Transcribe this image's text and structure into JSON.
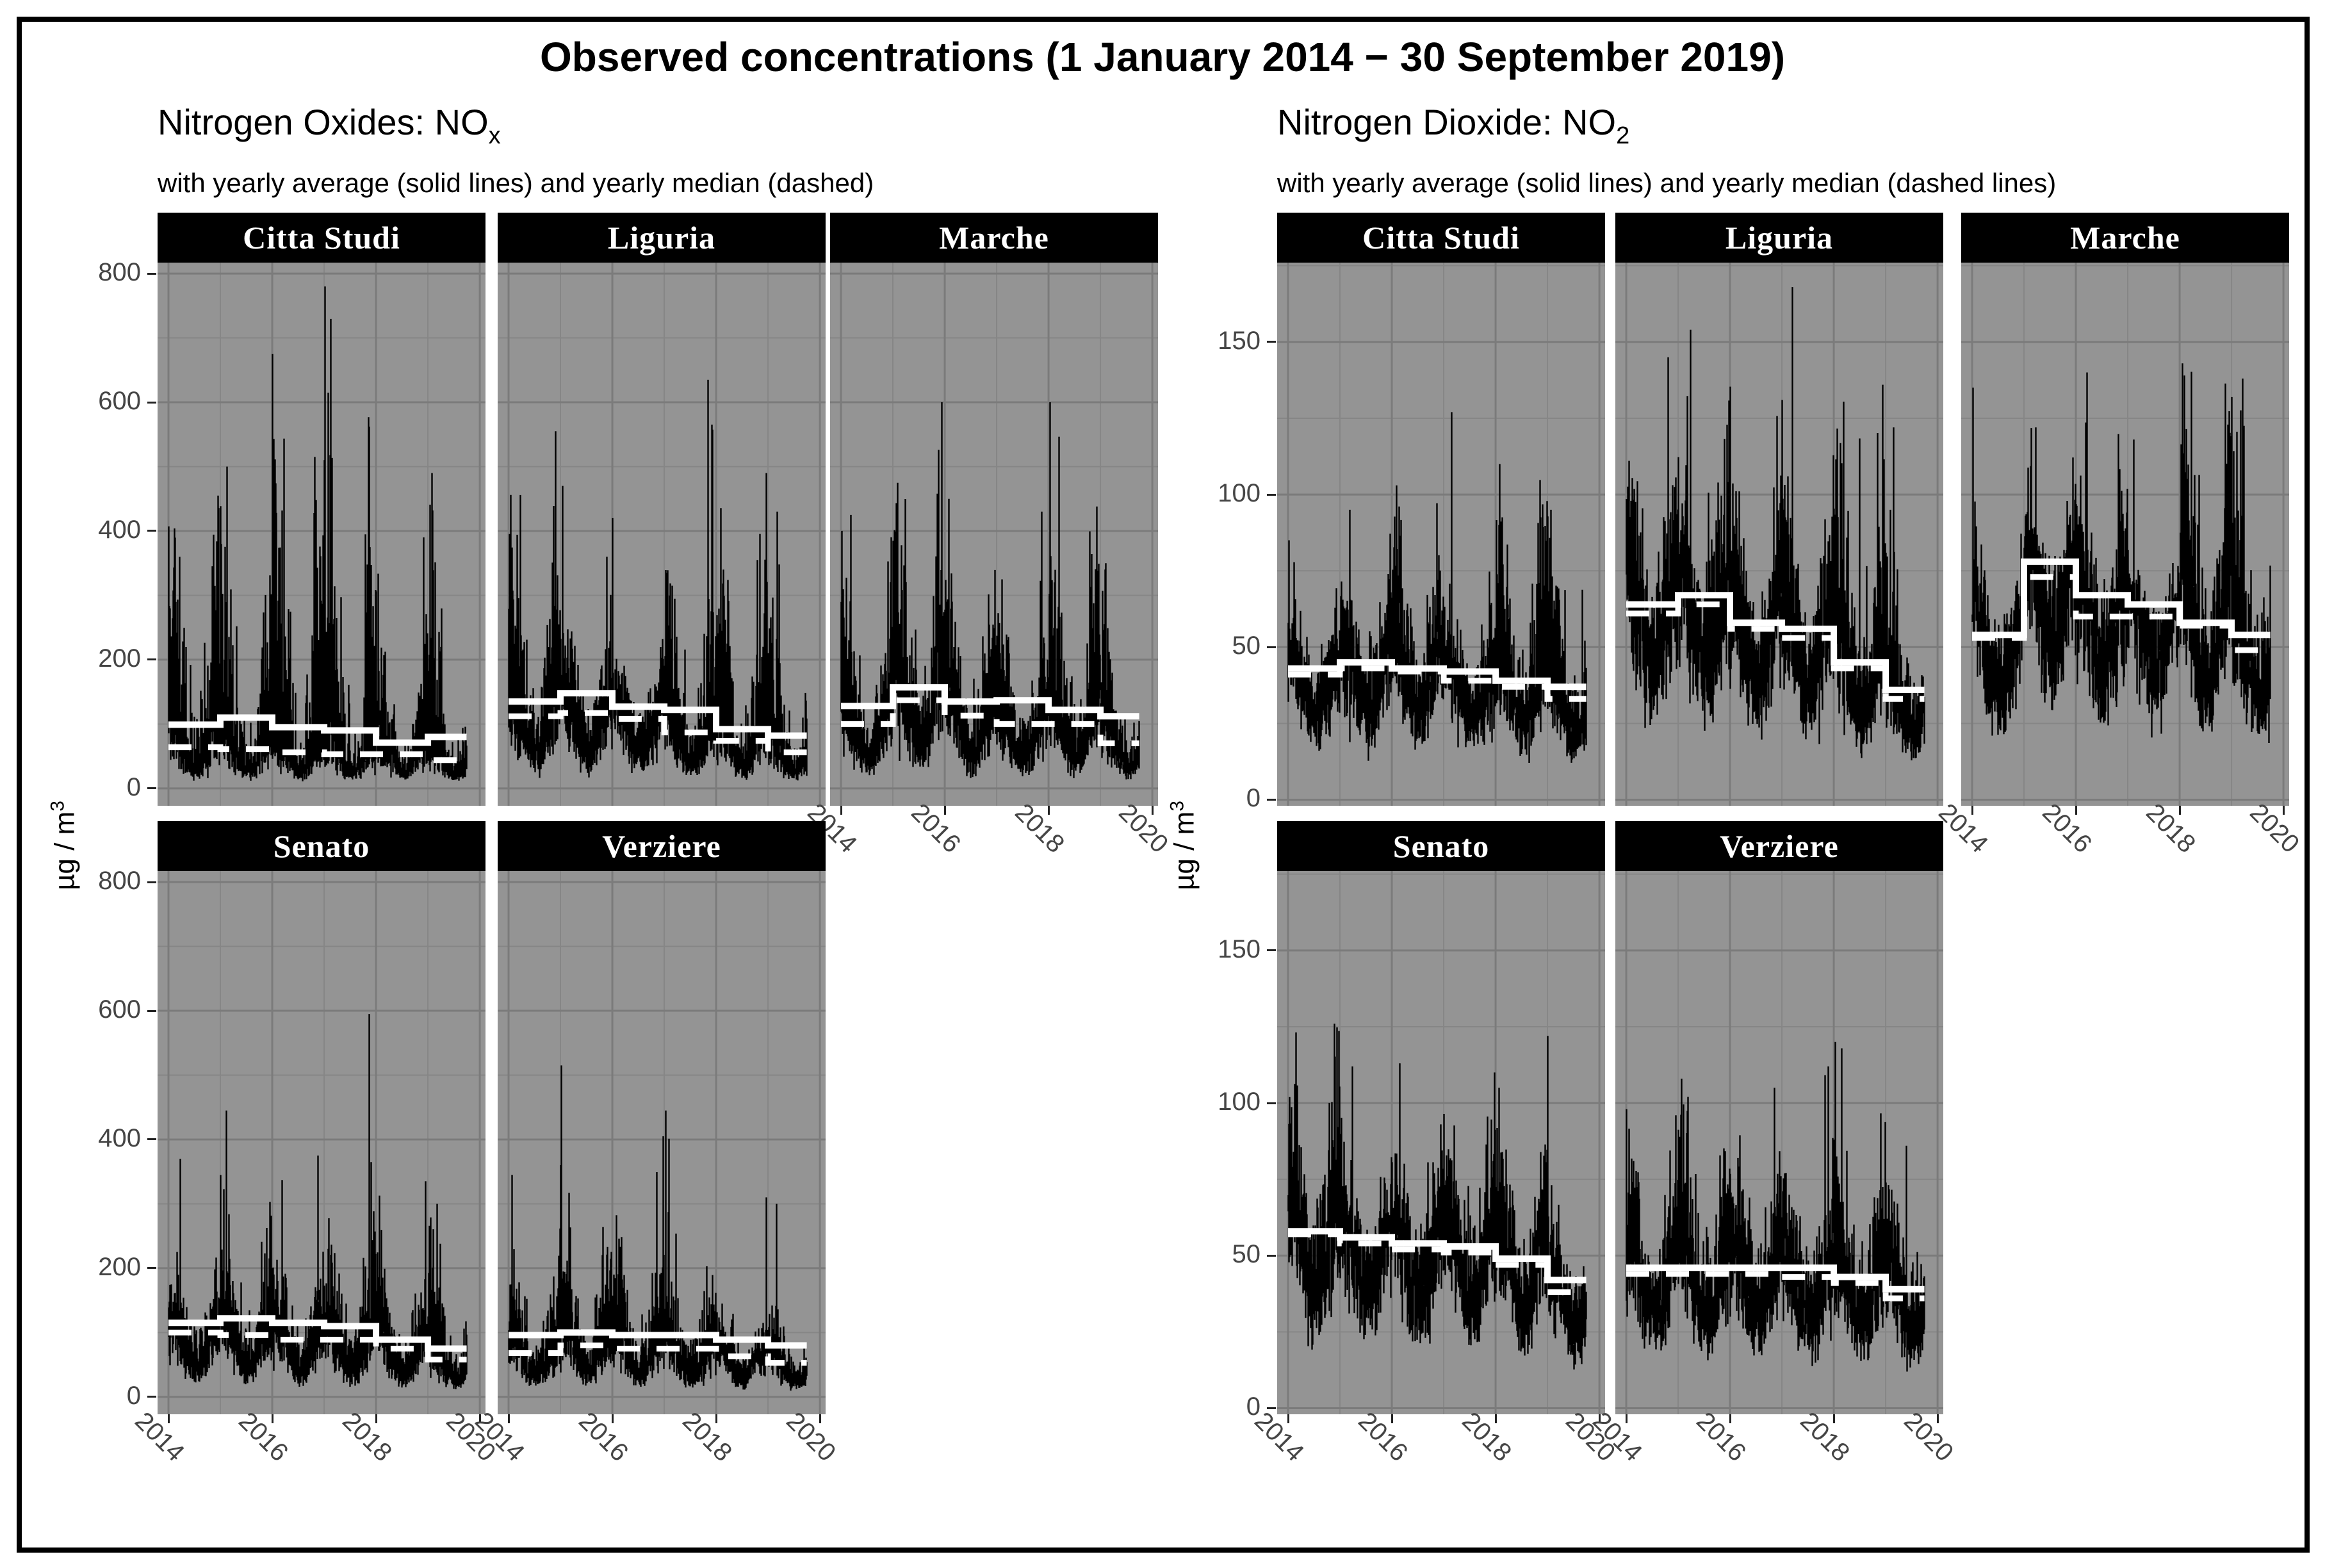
{
  "chart_data": {
    "type": "line",
    "title": "Observed concentrations (1 January 2014 − 30 September 2019)",
    "years": [
      2014,
      2015,
      2016,
      2017,
      2018,
      2019
    ],
    "x_ticks": [
      "2014",
      "2016",
      "2018",
      "2020"
    ],
    "x_tick_years": [
      2014,
      2016,
      2018,
      2020
    ],
    "x_domain": [
      2014.0,
      2019.747
    ],
    "grid": "on",
    "legend": "none",
    "series_style": {
      "daily_series": "black dense daily line",
      "yearly_average": "white solid step line",
      "yearly_median": "white dashed step line"
    },
    "colors": {
      "panel_bg": "#949494",
      "grid_major": "#7b7b7b",
      "grid_minor": "#868686",
      "daily_series": "#000000",
      "summary_lines": "#ffffff",
      "strip_bg": "#000000",
      "strip_text": "#ffffff",
      "axis_text": "#454545"
    },
    "groups": [
      {
        "id": "nox",
        "header_main": "Nitrogen Oxides: NO",
        "header_sub": "x",
        "subtitle": "with yearly average (solid lines) and yearly median (dashed)",
        "ylabel_main": "µg / m",
        "ylabel_sup": "3",
        "yticks": [
          0,
          200,
          400,
          600,
          800
        ],
        "yminor": [
          100,
          300,
          500,
          700
        ],
        "ylim": [
          -27,
          817
        ],
        "panels": [
          {
            "facet": "Citta Studi",
            "yearly_average": [
              99,
              110,
              95,
              90,
              71,
              80
            ],
            "yearly_median": [
              64,
              61,
              56,
              53,
              53,
              44
            ],
            "winter_peaks": [
              455,
              500,
              675,
              780,
              390,
              490
            ]
          },
          {
            "facet": "Liguria",
            "yearly_average": [
              135,
              148,
              127,
              122,
              92,
              82
            ],
            "yearly_median": [
              112,
              117,
              108,
              87,
              74,
              56
            ],
            "winter_peaks": [
              555,
              470,
              420,
              635,
              490,
              430
            ]
          },
          {
            "facet": "Marche",
            "yearly_average": [
              128,
              157,
              135,
              137,
              122,
              112
            ],
            "yearly_median": [
              100,
              137,
              113,
              100,
              100,
              70
            ],
            "winter_peaks": [
              425,
              600,
              450,
              430,
              600,
              350
            ]
          },
          {
            "facet": "Senato",
            "yearly_average": [
              115,
              122,
              115,
              110,
              89,
              75
            ],
            "yearly_median": [
              100,
              96,
              89,
              89,
              75,
              58
            ],
            "winter_peaks": [
              370,
              445,
              375,
              595,
              335,
              300
            ]
          },
          {
            "facet": "Verziere",
            "yearly_average": [
              96,
              100,
              96,
              96,
              89,
              80
            ],
            "yearly_median": [
              68,
              80,
              75,
              75,
              63,
              53
            ],
            "winter_peaks": [
              345,
              515,
              405,
              445,
              310,
              300
            ]
          }
        ]
      },
      {
        "id": "no2",
        "header_main": "Nitrogen Dioxide: NO",
        "header_sub": "2",
        "subtitle": "with yearly average (solid lines) and yearly median (dashed lines)",
        "ylabel_main": "µg / m",
        "ylabel_sup": "3",
        "yticks": [
          0,
          50,
          100,
          150
        ],
        "yminor": [
          25,
          75,
          125,
          175
        ],
        "ylim": [
          -2,
          176
        ],
        "panels": [
          {
            "facet": "Citta Studi",
            "yearly_average": [
              43,
              45,
              43,
              42,
              39,
              37
            ],
            "yearly_median": [
              41,
              43,
              42,
              39,
              37,
              33
            ],
            "winter_peaks": [
              85,
              95,
              103,
              127,
              110,
              95
            ]
          },
          {
            "facet": "Liguria",
            "yearly_average": [
              64,
              67,
              58,
              56,
              45,
              36
            ],
            "yearly_median": [
              61,
              64,
              56,
              53,
              43,
              33
            ],
            "winter_peaks": [
              145,
              154,
              131,
              168,
              136,
              122
            ]
          },
          {
            "facet": "Marche",
            "yearly_average": [
              54,
              78,
              67,
              64,
              58,
              54
            ],
            "yearly_median": [
              53,
              73,
              60,
              60,
              57,
              49
            ],
            "winter_peaks": [
              135,
              122,
              140,
              118,
              143,
              138
            ]
          },
          {
            "facet": "Senato",
            "yearly_average": [
              58,
              56,
              54,
              53,
              49,
              42
            ],
            "yearly_median": [
              57,
              54,
              52,
              51,
              47,
              38
            ],
            "winter_peaks": [
              126,
              112,
              113,
              110,
              105,
              122
            ]
          },
          {
            "facet": "Verziere",
            "yearly_average": [
              46,
              46,
              46,
              46,
              43,
              39
            ],
            "yearly_median": [
              44,
              44,
              44,
              43,
              41,
              36
            ],
            "winter_peaks": [
              98,
              108,
              105,
              112,
              120,
              86
            ]
          }
        ]
      }
    ]
  }
}
